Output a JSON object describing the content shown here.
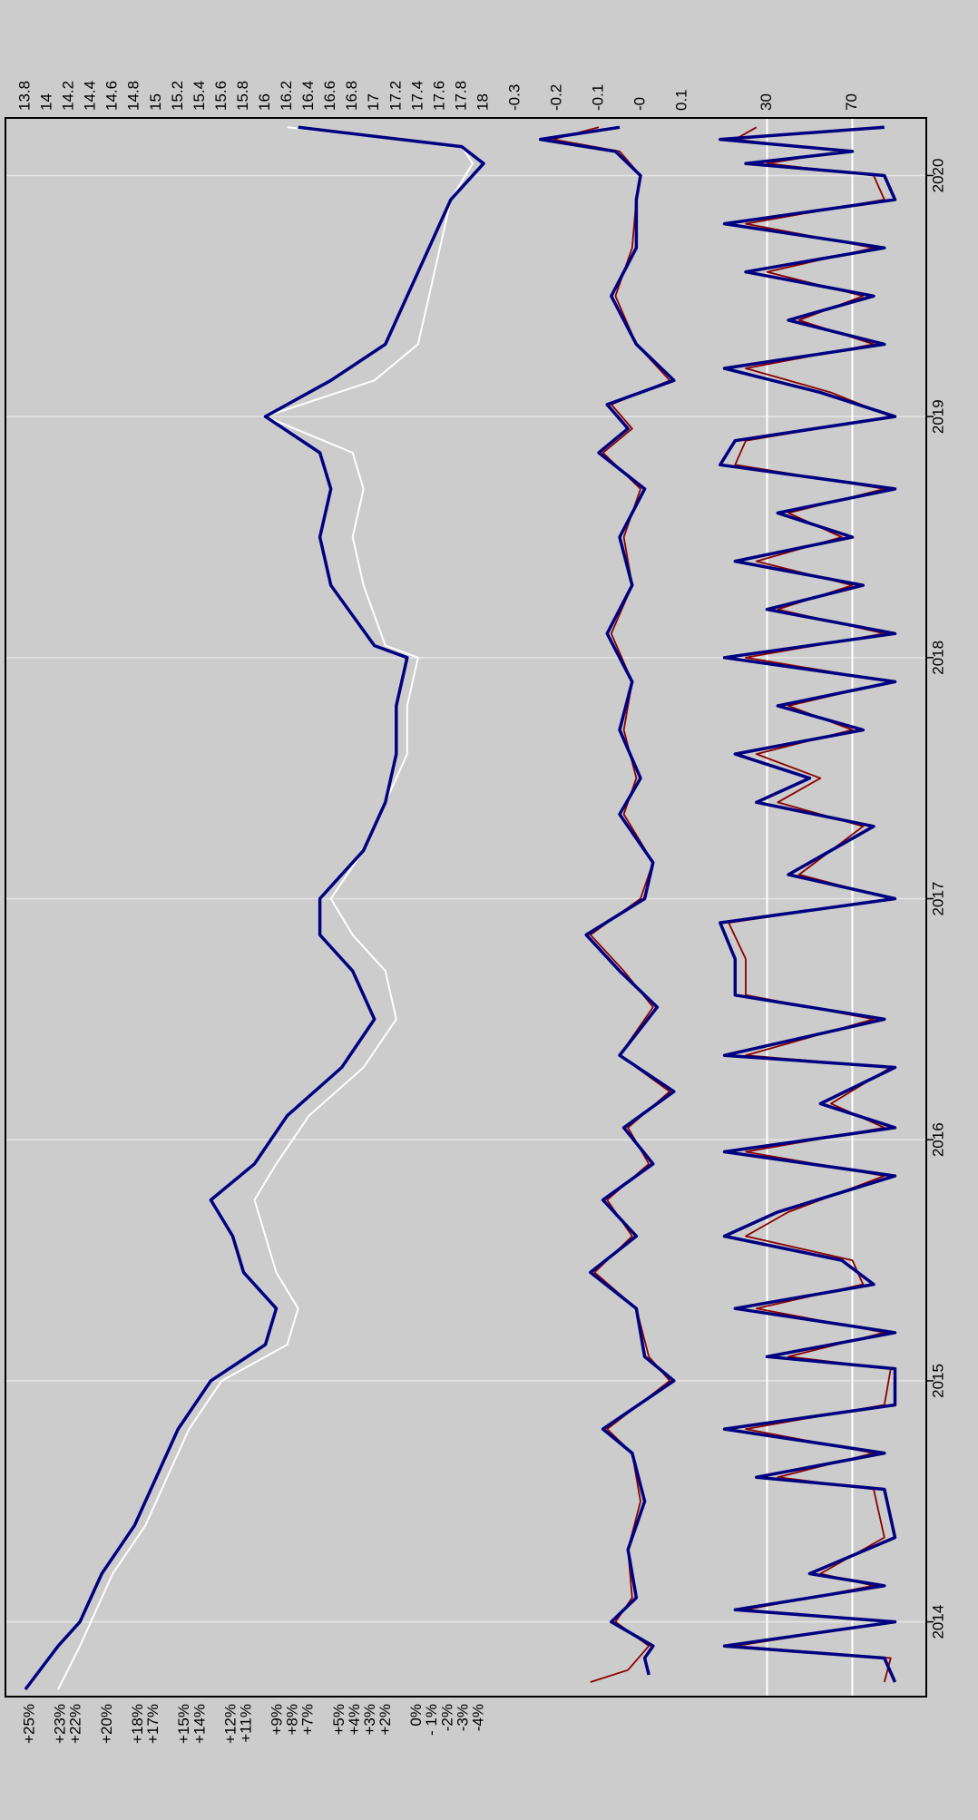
{
  "chart_data": {
    "type": "line",
    "orientation": "rotated-90-clockwise",
    "background": "#cccccc",
    "grid": true,
    "x": {
      "range": [
        2013.72,
        2020.22
      ],
      "ticks": [
        2014,
        2015,
        2016,
        2017,
        2018,
        2019,
        2020
      ],
      "tick_labels": [
        "2014",
        "2015",
        "2016",
        "2017",
        "2018",
        "2019",
        "2020"
      ]
    },
    "panels": [
      {
        "id": "price",
        "y_left": {
          "range": [
            26,
            -5
          ],
          "ticks": [
            25,
            23,
            22,
            20,
            18,
            17,
            15,
            14,
            12,
            11,
            9,
            8,
            7,
            5,
            4,
            3,
            2,
            0,
            -1,
            -2,
            -3,
            -4
          ],
          "tick_labels": [
            "+25%",
            "+23%",
            "+22%",
            "+20%",
            "+18%",
            "+17%",
            "+15%",
            "+14%",
            "+12%",
            "+11%",
            "+9%",
            "+8%",
            "+7%",
            "+5%",
            "+4%",
            "+3%",
            "+2%",
            "0%",
            "- 1%",
            "-2%",
            "-3%",
            "-4%"
          ]
        },
        "y_right": {
          "range": [
            13.7,
            18.1
          ],
          "ticks": [
            13.8,
            14,
            14.2,
            14.4,
            14.6,
            14.8,
            15,
            15.2,
            15.4,
            15.6,
            15.8,
            16,
            16.2,
            16.4,
            16.6,
            16.8,
            17,
            17.2,
            17.4,
            17.6,
            17.8,
            18
          ],
          "tick_labels": [
            "13.8",
            "14",
            "14.2",
            "14.4",
            "14.6",
            "14.8",
            "15",
            "15.2",
            "15.4",
            "15.6",
            "15.8",
            "16",
            "16.2",
            "16.4",
            "16.6",
            "16.8",
            "17",
            "17.2",
            "17.4",
            "17.6",
            "17.8",
            "18"
          ]
        },
        "series": [
          {
            "color": "#ffffff",
            "x": [
              2013.72,
              2013.9,
              2014.0,
              2014.2,
              2014.4,
              2014.6,
              2014.8,
              2015.0,
              2015.15,
              2015.3,
              2015.45,
              2015.6,
              2015.75,
              2015.9,
              2016.1,
              2016.3,
              2016.5,
              2016.7,
              2016.85,
              2017.0,
              2017.2,
              2017.4,
              2017.6,
              2017.8,
              2018.0,
              2018.05,
              2018.3,
              2018.5,
              2018.7,
              2018.85,
              2019.0,
              2019.15,
              2019.3,
              2019.5,
              2019.7,
              2019.9,
              2020.05,
              2020.12,
              2020.2
            ],
            "y": [
              14.1,
              14.3,
              14.4,
              14.6,
              14.9,
              15.1,
              15.3,
              15.6,
              16.2,
              16.3,
              16.1,
              16.0,
              15.9,
              16.1,
              16.4,
              16.9,
              17.2,
              17.1,
              16.8,
              16.6,
              16.9,
              17.1,
              17.3,
              17.3,
              17.4,
              17.1,
              16.9,
              16.8,
              16.9,
              16.8,
              16.0,
              17.0,
              17.4,
              17.5,
              17.6,
              17.7,
              17.9,
              17.8,
              16.2
            ]
          },
          {
            "color": "#000080",
            "x": [
              2013.72,
              2013.9,
              2014.0,
              2014.2,
              2014.4,
              2014.6,
              2014.8,
              2015.0,
              2015.15,
              2015.3,
              2015.45,
              2015.6,
              2015.75,
              2015.9,
              2016.1,
              2016.3,
              2016.5,
              2016.7,
              2016.85,
              2017.0,
              2017.2,
              2017.4,
              2017.6,
              2017.8,
              2018.0,
              2018.05,
              2018.3,
              2018.5,
              2018.7,
              2018.85,
              2019.0,
              2019.15,
              2019.3,
              2019.5,
              2019.7,
              2019.9,
              2020.05,
              2020.12,
              2020.2
            ],
            "y": [
              13.8,
              14.1,
              14.3,
              14.5,
              14.8,
              15.0,
              15.2,
              15.5,
              16.0,
              16.1,
              15.8,
              15.7,
              15.5,
              15.9,
              16.2,
              16.7,
              17.0,
              16.8,
              16.5,
              16.5,
              16.9,
              17.1,
              17.2,
              17.2,
              17.3,
              17.0,
              16.6,
              16.5,
              16.6,
              16.5,
              16.0,
              16.6,
              17.1,
              17.3,
              17.5,
              17.7,
              18.0,
              17.8,
              16.3
            ]
          }
        ]
      },
      {
        "id": "momentum",
        "y_right": {
          "range": [
            -0.35,
            0.15
          ],
          "ticks": [
            -0.3,
            -0.2,
            -0.1,
            0,
            0.1
          ],
          "tick_labels": [
            "-0.3",
            "-0.2",
            "-0.1",
            "-0",
            "0.1"
          ]
        },
        "series": [
          {
            "color": "#8b0000",
            "x": [
              2013.75,
              2013.8,
              2013.9,
              2014.0,
              2014.1,
              2014.3,
              2014.5,
              2014.7,
              2014.8,
              2015.0,
              2015.1,
              2015.3,
              2015.45,
              2015.6,
              2015.75,
              2015.9,
              2016.05,
              2016.2,
              2016.35,
              2016.55,
              2016.7,
              2016.85,
              2017.0,
              2017.15,
              2017.35,
              2017.5,
              2017.7,
              2017.9,
              2018.1,
              2018.3,
              2018.5,
              2018.7,
              2018.85,
              2018.95,
              2019.05,
              2019.15,
              2019.3,
              2019.5,
              2019.7,
              2019.9,
              2020.0,
              2020.1,
              2020.15,
              2020.2
            ],
            "y": [
              -0.12,
              -0.03,
              0.02,
              -0.06,
              -0.02,
              -0.03,
              0.0,
              -0.02,
              -0.08,
              0.07,
              0.02,
              -0.01,
              -0.11,
              -0.02,
              -0.08,
              0.02,
              -0.03,
              0.07,
              -0.05,
              0.03,
              -0.04,
              -0.12,
              0.0,
              0.03,
              -0.04,
              -0.01,
              -0.04,
              -0.02,
              -0.07,
              -0.02,
              -0.04,
              0.0,
              -0.09,
              -0.02,
              -0.07,
              0.07,
              -0.01,
              -0.06,
              -0.02,
              -0.01,
              0.0,
              -0.05,
              -0.21,
              -0.1
            ]
          },
          {
            "color": "#000080",
            "x": [
              2013.78,
              2013.85,
              2013.9,
              2014.0,
              2014.1,
              2014.3,
              2014.5,
              2014.7,
              2014.8,
              2015.0,
              2015.1,
              2015.3,
              2015.45,
              2015.6,
              2015.75,
              2015.9,
              2016.05,
              2016.2,
              2016.35,
              2016.55,
              2016.7,
              2016.85,
              2017.0,
              2017.15,
              2017.35,
              2017.5,
              2017.7,
              2017.9,
              2018.1,
              2018.3,
              2018.5,
              2018.7,
              2018.85,
              2018.95,
              2019.05,
              2019.15,
              2019.3,
              2019.5,
              2019.7,
              2019.9,
              2020.0,
              2020.1,
              2020.15,
              2020.2
            ],
            "y": [
              0.02,
              0.01,
              0.03,
              -0.07,
              -0.01,
              -0.03,
              0.01,
              -0.02,
              -0.09,
              0.08,
              0.01,
              -0.01,
              -0.12,
              -0.01,
              -0.09,
              0.03,
              -0.04,
              0.08,
              -0.05,
              0.04,
              -0.05,
              -0.13,
              0.01,
              0.03,
              -0.05,
              0.0,
              -0.05,
              -0.02,
              -0.08,
              -0.02,
              -0.05,
              0.01,
              -0.1,
              -0.03,
              -0.08,
              0.08,
              -0.01,
              -0.07,
              -0.01,
              -0.01,
              0.0,
              -0.06,
              -0.24,
              -0.05
            ]
          }
        ]
      },
      {
        "id": "oscillator",
        "y_right": {
          "range": [
            0,
            100
          ],
          "ticks": [
            30,
            70
          ],
          "tick_labels": [
            "30",
            "70"
          ],
          "reference_lines": [
            30,
            70
          ],
          "reference_line_color": "#ffffff"
        },
        "series": [
          {
            "color": "#8b0000",
            "x": [
              2013.75,
              2013.85,
              2013.9,
              2014.0,
              2014.05,
              2014.15,
              2014.2,
              2014.35,
              2014.55,
              2014.6,
              2014.7,
              2014.8,
              2014.9,
              2015.05,
              2015.1,
              2015.2,
              2015.3,
              2015.4,
              2015.5,
              2015.6,
              2015.7,
              2015.85,
              2015.95,
              2016.05,
              2016.15,
              2016.3,
              2016.35,
              2016.5,
              2016.6,
              2016.75,
              2016.9,
              2017.0,
              2017.1,
              2017.3,
              2017.4,
              2017.5,
              2017.6,
              2017.7,
              2017.8,
              2017.9,
              2018.0,
              2018.1,
              2018.2,
              2018.3,
              2018.4,
              2018.5,
              2018.6,
              2018.7,
              2018.8,
              2018.9,
              2019.0,
              2019.1,
              2019.2,
              2019.3,
              2019.4,
              2019.5,
              2019.6,
              2019.7,
              2019.8,
              2019.9,
              2020.0,
              2020.05,
              2020.1,
              2020.15,
              2020.2
            ],
            "y": [
              85,
              88,
              15,
              88,
              20,
              80,
              55,
              85,
              80,
              35,
              80,
              20,
              85,
              88,
              40,
              85,
              25,
              75,
              70,
              20,
              40,
              85,
              20,
              85,
              60,
              88,
              20,
              80,
              20,
              20,
              12,
              88,
              45,
              75,
              35,
              55,
              25,
              70,
              40,
              88,
              20,
              85,
              35,
              70,
              25,
              65,
              40,
              85,
              15,
              20,
              88,
              60,
              20,
              80,
              45,
              75,
              30,
              80,
              20,
              85,
              80,
              30,
              65,
              15,
              25
            ]
          },
          {
            "color": "#000080",
            "x": [
              2013.75,
              2013.85,
              2013.9,
              2014.0,
              2014.05,
              2014.15,
              2014.2,
              2014.35,
              2014.55,
              2014.6,
              2014.7,
              2014.8,
              2014.9,
              2015.05,
              2015.1,
              2015.2,
              2015.3,
              2015.4,
              2015.5,
              2015.6,
              2015.7,
              2015.85,
              2015.95,
              2016.05,
              2016.15,
              2016.3,
              2016.35,
              2016.5,
              2016.6,
              2016.75,
              2016.9,
              2017.0,
              2017.1,
              2017.3,
              2017.4,
              2017.5,
              2017.6,
              2017.7,
              2017.8,
              2017.9,
              2018.0,
              2018.1,
              2018.2,
              2018.3,
              2018.4,
              2018.5,
              2018.6,
              2018.7,
              2018.8,
              2018.9,
              2019.0,
              2019.1,
              2019.2,
              2019.3,
              2019.4,
              2019.5,
              2019.6,
              2019.7,
              2019.8,
              2019.9,
              2020.0,
              2020.05,
              2020.1,
              2020.15,
              2020.2
            ],
            "y": [
              90,
              85,
              10,
              90,
              15,
              85,
              50,
              90,
              85,
              25,
              85,
              10,
              90,
              90,
              30,
              90,
              15,
              80,
              65,
              10,
              35,
              90,
              10,
              90,
              55,
              90,
              10,
              85,
              15,
              15,
              8,
              90,
              40,
              80,
              25,
              50,
              15,
              75,
              35,
              90,
              10,
              90,
              30,
              75,
              15,
              70,
              35,
              90,
              8,
              15,
              90,
              55,
              10,
              85,
              40,
              80,
              20,
              85,
              10,
              90,
              85,
              20,
              70,
              8,
              85
            ]
          }
        ]
      }
    ]
  }
}
